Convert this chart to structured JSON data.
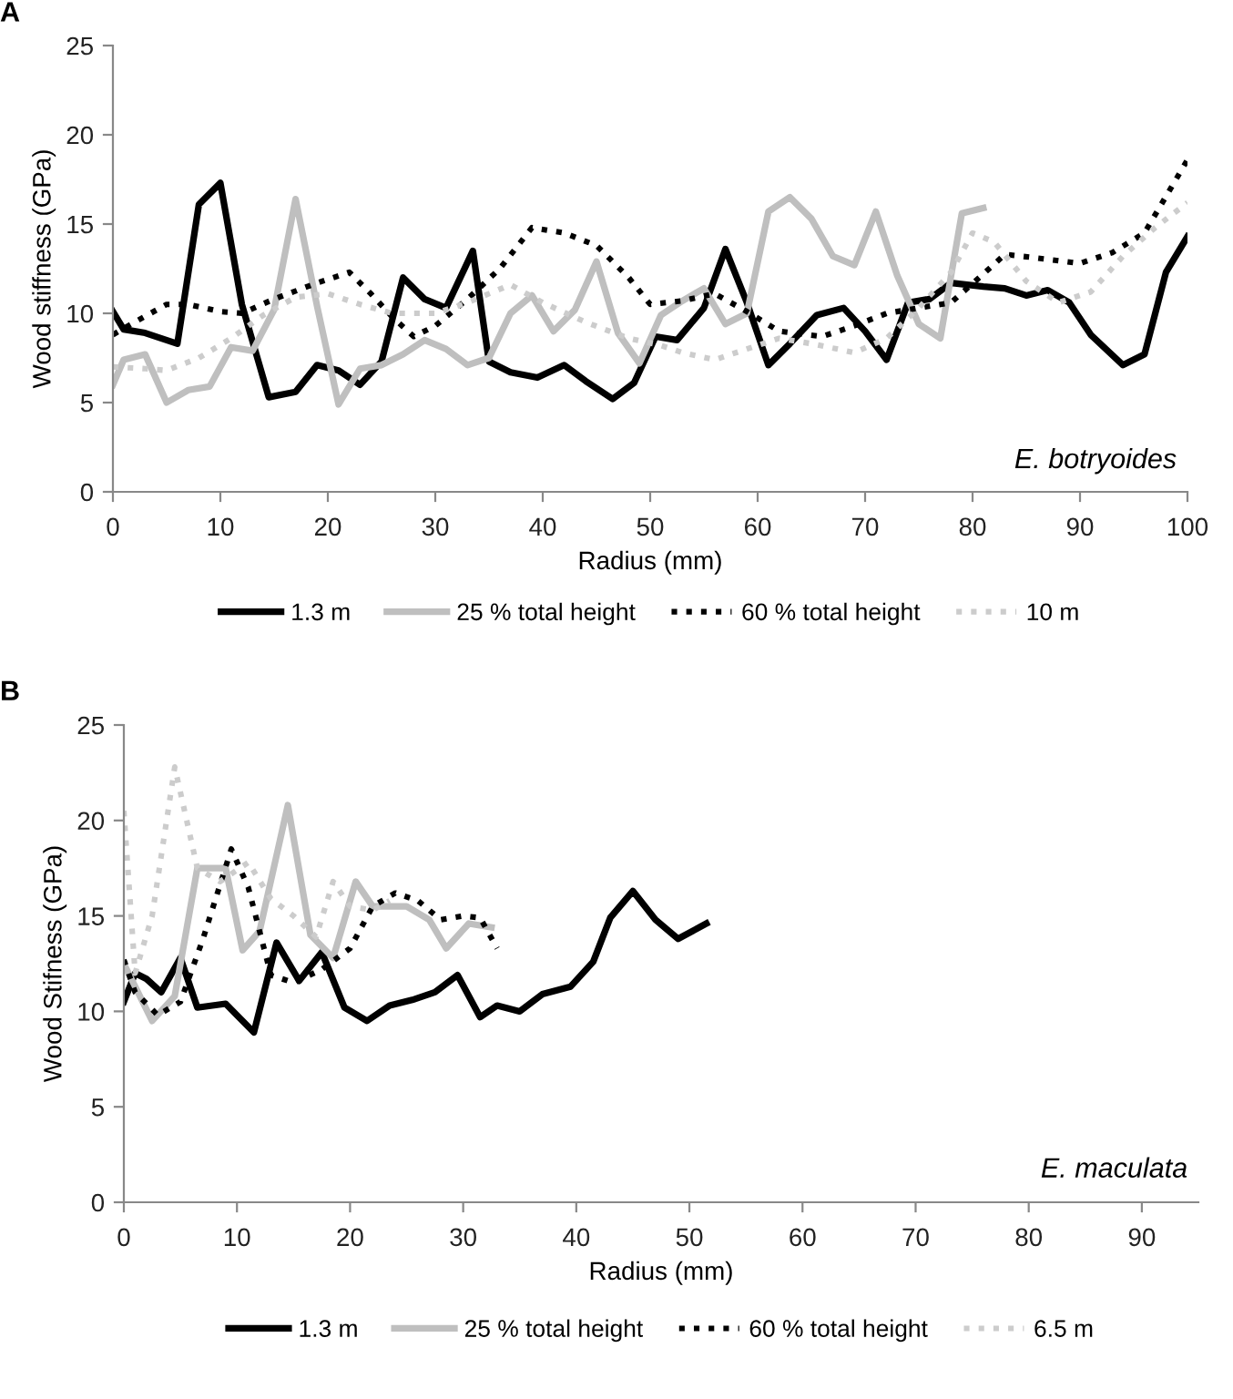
{
  "chart_data": [
    {
      "type": "line",
      "title": "A",
      "xlabel": "Radius (mm)",
      "ylabel": "Wood stiffness (GPa)",
      "annotations": [
        "E. botryoides"
      ],
      "xlim": [
        0,
        100
      ],
      "xticks": [
        0,
        10,
        20,
        30,
        40,
        50,
        60,
        70,
        80,
        90,
        100
      ],
      "ylim": [
        0,
        25
      ],
      "yticks": [
        0,
        5,
        10,
        15,
        20,
        25
      ],
      "grid": false,
      "legend": "bottom",
      "marker": "none",
      "series": [
        {
          "name": "1.3 m",
          "color": "#000000",
          "line_style": "solid",
          "x": [
            0,
            1,
            3,
            6,
            8,
            10,
            12,
            14.5,
            17,
            19,
            21,
            23,
            25,
            27,
            29,
            31,
            33.5,
            35,
            37,
            39.5,
            42,
            44,
            46.5,
            48.5,
            50.5,
            52.5,
            55,
            57,
            59,
            61,
            63,
            65.5,
            68,
            70,
            72,
            74,
            76,
            78,
            81,
            83,
            85,
            87,
            89,
            91,
            94,
            96,
            98,
            100
          ],
          "values": [
            10.1,
            9.1,
            8.9,
            8.3,
            16.1,
            17.3,
            10.5,
            5.3,
            5.6,
            7.1,
            6.8,
            6.0,
            7.3,
            12.0,
            10.8,
            10.3,
            13.5,
            7.3,
            6.7,
            6.4,
            7.1,
            6.2,
            5.2,
            6.1,
            8.7,
            8.5,
            10.3,
            13.6,
            10.6,
            7.1,
            8.3,
            9.9,
            10.3,
            9.0,
            7.4,
            10.6,
            10.8,
            11.7,
            11.5,
            11.4,
            11.0,
            11.3,
            10.6,
            8.8,
            7.1,
            7.7,
            12.3,
            14.3
          ]
        },
        {
          "name": "25 % total height",
          "color": "#bfbfbf",
          "line_style": "solid",
          "x": [
            0,
            1,
            3,
            5,
            7,
            9,
            11,
            13,
            15,
            17,
            19,
            21,
            23,
            25,
            27,
            29,
            31,
            33,
            35,
            37,
            39,
            41,
            43,
            45,
            47,
            49,
            51,
            53,
            55,
            57,
            59,
            61,
            63,
            65,
            67,
            69,
            71,
            73,
            75,
            77,
            79,
            81
          ],
          "values": [
            6.0,
            7.4,
            7.7,
            5.0,
            5.7,
            5.9,
            8.1,
            7.9,
            10.2,
            16.4,
            10.4,
            4.9,
            6.9,
            7.1,
            7.7,
            8.5,
            8.0,
            7.1,
            7.5,
            10.0,
            11.0,
            9.0,
            10.2,
            12.9,
            8.9,
            7.2,
            9.9,
            10.7,
            11.4,
            9.4,
            10.0,
            15.7,
            16.5,
            15.3,
            13.2,
            12.7,
            15.7,
            12.1,
            9.4,
            8.6,
            15.6,
            15.9
          ]
        },
        {
          "name": "60 % total height",
          "color": "#000000",
          "line_style": "dotted",
          "x": [
            0,
            2,
            5,
            7,
            10,
            12,
            15,
            19,
            22,
            24,
            26,
            28,
            30,
            33,
            36,
            39,
            42,
            45,
            48,
            50,
            53,
            56,
            59,
            62,
            66,
            69,
            72,
            75,
            78,
            81,
            83,
            86,
            90,
            93,
            96,
            100
          ],
          "values": [
            8.8,
            9.5,
            10.5,
            10.5,
            10.1,
            10.0,
            10.8,
            11.7,
            12.3,
            11.1,
            9.8,
            8.7,
            9.3,
            10.8,
            12.5,
            14.8,
            14.5,
            13.8,
            12.0,
            10.5,
            10.7,
            11.1,
            10.1,
            9.0,
            8.7,
            9.3,
            10.0,
            10.3,
            10.6,
            12.2,
            13.3,
            13.1,
            12.8,
            13.4,
            14.5,
            18.6
          ]
        },
        {
          "name": "10 m",
          "color": "#cccccc",
          "line_style": "dotted",
          "x": [
            0,
            3,
            5,
            8,
            11,
            14,
            17,
            20,
            23,
            26,
            30,
            33,
            37,
            40,
            44,
            48,
            51,
            53,
            56,
            59,
            62,
            65,
            69,
            72,
            75,
            78,
            80,
            82,
            85,
            88,
            91,
            94,
            97,
            100
          ],
          "values": [
            7.0,
            6.9,
            6.8,
            7.5,
            8.6,
            9.9,
            10.9,
            11.1,
            10.5,
            10.0,
            10.0,
            10.6,
            11.6,
            10.6,
            9.5,
            8.6,
            8.2,
            7.8,
            7.4,
            8.0,
            8.6,
            8.3,
            7.8,
            8.6,
            10.3,
            12.3,
            14.5,
            14.0,
            11.8,
            10.6,
            11.2,
            13.2,
            14.8,
            16.2
          ]
        }
      ]
    },
    {
      "type": "line",
      "title": "B",
      "xlabel": "Radius (mm)",
      "ylabel": "Wood Stifness (GPa)",
      "annotations": [
        "E. maculata"
      ],
      "xlim": [
        0,
        95
      ],
      "xticks": [
        0,
        10,
        20,
        30,
        40,
        50,
        60,
        70,
        80,
        90
      ],
      "ylim": [
        0,
        25
      ],
      "yticks": [
        0,
        5,
        10,
        15,
        20,
        25
      ],
      "grid": false,
      "legend": "bottom",
      "marker": "none",
      "series": [
        {
          "name": "1.3 m",
          "color": "#000000",
          "line_style": "solid",
          "x": [
            0,
            1,
            2,
            3.3,
            5,
            6.5,
            9,
            11.5,
            13.5,
            15.5,
            17.5,
            19.5,
            21.5,
            23.5,
            25.5,
            27.5,
            29.5,
            31.5,
            33,
            35,
            37,
            39.5,
            41.5,
            43,
            45,
            47,
            49,
            51.5
          ],
          "values": [
            10.5,
            12.0,
            11.7,
            11.0,
            12.8,
            10.2,
            10.4,
            8.9,
            13.6,
            11.6,
            13.1,
            10.2,
            9.5,
            10.3,
            10.6,
            11.0,
            11.9,
            9.7,
            10.3,
            10.0,
            10.9,
            11.3,
            12.6,
            14.9,
            16.3,
            14.8,
            13.8,
            14.6
          ]
        },
        {
          "name": "25 % total height",
          "color": "#bfbfbf",
          "line_style": "solid",
          "x": [
            0,
            2.5,
            4.5,
            6.5,
            9,
            10.5,
            12,
            14.5,
            16.5,
            18.5,
            20.5,
            22,
            25,
            27,
            28.5,
            30.5,
            32.5
          ],
          "values": [
            12.5,
            9.5,
            10.8,
            17.5,
            17.5,
            13.2,
            14.2,
            20.8,
            14.0,
            12.8,
            16.8,
            15.5,
            15.5,
            14.8,
            13.3,
            14.6,
            14.4
          ]
        },
        {
          "name": "60 % total height",
          "color": "#000000",
          "line_style": "dotted",
          "x": [
            0,
            1,
            3,
            5,
            7,
            9.5,
            11,
            13,
            15,
            17.5,
            20,
            22,
            24,
            26,
            28,
            30,
            31.5,
            33
          ],
          "values": [
            12.7,
            11.0,
            9.8,
            10.5,
            13.8,
            18.5,
            16.5,
            11.9,
            11.5,
            12.2,
            13.3,
            15.5,
            16.2,
            15.8,
            14.8,
            15.0,
            14.9,
            13.3
          ]
        },
        {
          "name": "6.5 m",
          "color": "#cccccc",
          "line_style": "dotted",
          "x": [
            0,
            1,
            2.5,
            4.5,
            6.5,
            8.5,
            11,
            13,
            15,
            17,
            18.5,
            20,
            22,
            23.5
          ],
          "values": [
            20.5,
            12.0,
            15.0,
            22.8,
            17.5,
            16.8,
            17.8,
            15.9,
            15.0,
            13.9,
            16.8,
            15.5,
            15.3,
            15.8
          ]
        }
      ]
    }
  ]
}
